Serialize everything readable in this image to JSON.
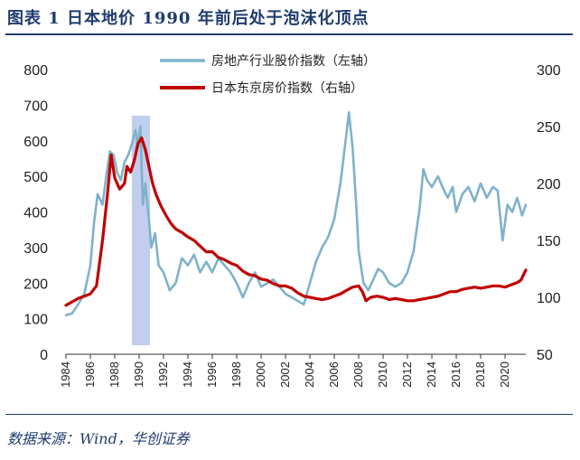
{
  "header": {
    "title": "图表 1 日本地价 1990 年前后处于泡沫化顶点"
  },
  "footer": {
    "source": "数据来源：Wind，华创证券"
  },
  "chart_data": {
    "type": "line",
    "highlight_span": [
      1989.4,
      1990.9
    ],
    "left_axis": {
      "ylim": [
        0,
        800
      ],
      "ticks": [
        0,
        100,
        200,
        300,
        400,
        500,
        600,
        700,
        800
      ]
    },
    "right_axis": {
      "ylim": [
        50,
        300
      ],
      "ticks": [
        50,
        100,
        150,
        200,
        250,
        300
      ]
    },
    "x_ticks": [
      "1984",
      "1986",
      "1988",
      "1990",
      "1992",
      "1994",
      "1996",
      "1998",
      "2000",
      "2002",
      "2004",
      "2006",
      "2008",
      "2010",
      "2012",
      "2014",
      "2016",
      "2018",
      "2020"
    ],
    "xlim": [
      1984,
      2021.7
    ],
    "legend": {
      "placement": "top-center"
    },
    "series": [
      {
        "name": "房地产行业股价指数（左轴）",
        "axis": "left",
        "color": "#7fb2cb",
        "x": [
          1984.0,
          1984.5,
          1985.0,
          1985.5,
          1986.0,
          1986.3,
          1986.6,
          1987.0,
          1987.3,
          1987.6,
          1987.9,
          1988.2,
          1988.5,
          1988.8,
          1989.1,
          1989.4,
          1989.7,
          1989.9,
          1990.1,
          1990.3,
          1990.5,
          1990.8,
          1991.0,
          1991.3,
          1991.6,
          1992.0,
          1992.5,
          1993.0,
          1993.5,
          1994.0,
          1994.5,
          1995.0,
          1995.5,
          1996.0,
          1996.5,
          1997.0,
          1997.5,
          1998.0,
          1998.5,
          1999.0,
          1999.5,
          2000.0,
          2000.5,
          2001.0,
          2001.5,
          2002.0,
          2002.5,
          2003.0,
          2003.5,
          2004.0,
          2004.5,
          2005.0,
          2005.5,
          2006.0,
          2006.5,
          2007.0,
          2007.2,
          2007.5,
          2007.8,
          2008.0,
          2008.4,
          2008.8,
          2009.2,
          2009.6,
          2010.0,
          2010.5,
          2011.0,
          2011.5,
          2012.0,
          2012.5,
          2013.0,
          2013.3,
          2013.6,
          2014.0,
          2014.5,
          2015.0,
          2015.3,
          2015.7,
          2016.0,
          2016.5,
          2017.0,
          2017.5,
          2018.0,
          2018.5,
          2019.0,
          2019.4,
          2019.8,
          2020.2,
          2020.6,
          2021.0,
          2021.4,
          2021.7
        ],
        "values": [
          110,
          115,
          140,
          170,
          250,
          370,
          450,
          420,
          500,
          570,
          560,
          510,
          490,
          540,
          560,
          590,
          630,
          580,
          640,
          420,
          480,
          380,
          300,
          340,
          250,
          230,
          180,
          200,
          270,
          250,
          280,
          230,
          260,
          230,
          270,
          250,
          230,
          200,
          160,
          200,
          230,
          190,
          200,
          210,
          190,
          170,
          160,
          150,
          140,
          200,
          260,
          300,
          330,
          380,
          480,
          620,
          680,
          580,
          420,
          290,
          200,
          180,
          210,
          240,
          230,
          200,
          190,
          200,
          230,
          290,
          410,
          520,
          490,
          470,
          500,
          460,
          440,
          470,
          400,
          450,
          470,
          430,
          480,
          440,
          470,
          460,
          320,
          420,
          400,
          440,
          390,
          420
        ]
      },
      {
        "name": "日本东京房价指数（右轴）",
        "axis": "right",
        "color": "#c00000",
        "x": [
          1984.0,
          1984.5,
          1985.0,
          1985.5,
          1986.0,
          1986.5,
          1987.0,
          1987.4,
          1987.7,
          1988.0,
          1988.4,
          1988.8,
          1989.0,
          1989.3,
          1989.6,
          1989.9,
          1990.2,
          1990.5,
          1990.8,
          1991.1,
          1991.4,
          1991.8,
          1992.2,
          1992.6,
          1993.0,
          1993.5,
          1994.0,
          1994.5,
          1995.0,
          1995.5,
          1996.0,
          1996.5,
          1997.0,
          1997.5,
          1998.0,
          1998.5,
          1999.0,
          1999.5,
          2000.0,
          2000.5,
          2001.0,
          2001.5,
          2002.0,
          2002.5,
          2003.0,
          2003.5,
          2004.0,
          2004.5,
          2005.0,
          2005.5,
          2006.0,
          2006.5,
          2007.0,
          2007.5,
          2008.0,
          2008.3,
          2008.6,
          2009.0,
          2009.5,
          2010.0,
          2010.5,
          2011.0,
          2011.5,
          2012.0,
          2012.5,
          2013.0,
          2013.5,
          2014.0,
          2014.5,
          2015.0,
          2015.5,
          2016.0,
          2016.5,
          2017.0,
          2017.5,
          2018.0,
          2018.5,
          2019.0,
          2019.5,
          2020.0,
          2020.5,
          2021.0,
          2021.3,
          2021.7
        ],
        "values": [
          93,
          96,
          99,
          101,
          103,
          110,
          150,
          190,
          225,
          205,
          195,
          200,
          215,
          210,
          220,
          235,
          240,
          230,
          215,
          200,
          190,
          180,
          172,
          165,
          160,
          157,
          153,
          150,
          145,
          140,
          140,
          135,
          133,
          130,
          128,
          123,
          120,
          119,
          116,
          115,
          112,
          110,
          110,
          108,
          104,
          101,
          100,
          99,
          98,
          99,
          101,
          103,
          106,
          109,
          110,
          105,
          97,
          100,
          101,
          100,
          98,
          99,
          98,
          97,
          97,
          98,
          99,
          100,
          101,
          103,
          105,
          105,
          107,
          108,
          109,
          108,
          109,
          110,
          110,
          109,
          111,
          113,
          115,
          124
        ]
      }
    ]
  }
}
